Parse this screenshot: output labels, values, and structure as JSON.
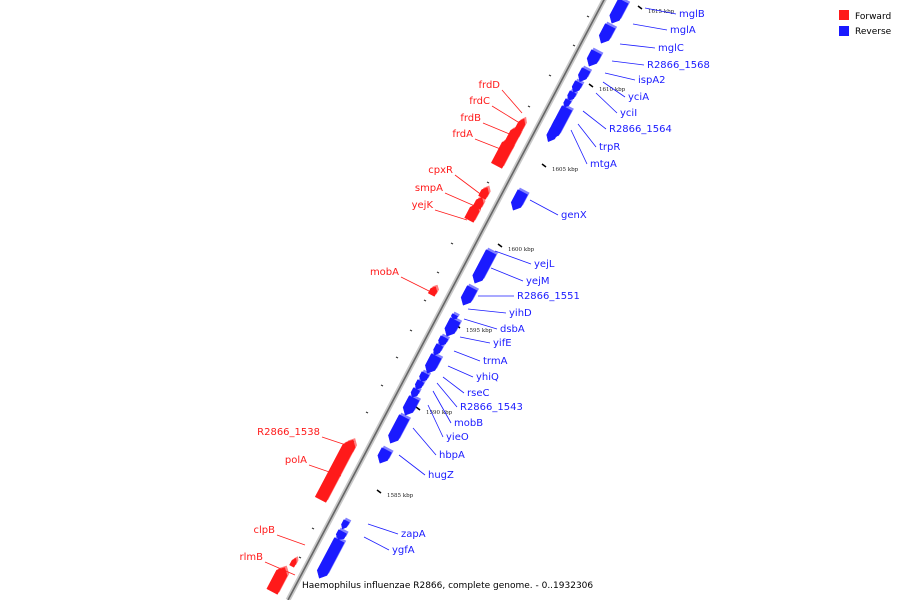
{
  "legend": [
    {
      "label": "Forward",
      "color": "#ff1a1a"
    },
    {
      "label": "Reverse",
      "color": "#1a1aff"
    }
  ],
  "caption": "Haemophilus influenzae R2866, complete genome. - 0..1932306",
  "ticks": [
    "1615 kbp",
    "1610 kbp",
    "1605 kbp",
    "1600 kbp",
    "1595 kbp",
    "1590 kbp",
    "1585 kbp"
  ],
  "genes": {
    "forward": [
      "frdD",
      "frdC",
      "frdB",
      "frdA",
      "cpxR",
      "smpA",
      "yejK",
      "mobA",
      "R2866_1538",
      "polA",
      "clpB",
      "rlmB"
    ],
    "reverse": [
      "mglB",
      "mglA",
      "mglC",
      "R2866_1568",
      "ispA2",
      "yciA",
      "yciI",
      "R2866_1564",
      "trpR",
      "mtgA",
      "genX",
      "yejL",
      "yejM",
      "R2866_1551",
      "yihD",
      "dsbA",
      "yifE",
      "trmA",
      "yhiQ",
      "rseC",
      "R2866_1543",
      "mobB",
      "yieO",
      "hbpA",
      "hugZ",
      "zapA",
      "ygfA"
    ]
  }
}
